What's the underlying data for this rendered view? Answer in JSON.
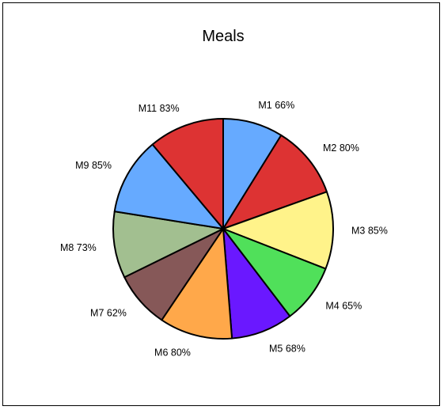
{
  "chart_data": {
    "type": "pie",
    "title": "Meals",
    "slices": [
      {
        "label": "M1 66%",
        "value": 66,
        "color": "#66aaff"
      },
      {
        "label": "M2 80%",
        "value": 80,
        "color": "#dd3333"
      },
      {
        "label": "M3 85%",
        "value": 85,
        "color": "#fff38a"
      },
      {
        "label": "M4 65%",
        "value": 65,
        "color": "#50e05a"
      },
      {
        "label": "M5 68%",
        "value": 68,
        "color": "#6a18ff"
      },
      {
        "label": "M6 80%",
        "value": 80,
        "color": "#ffa84a"
      },
      {
        "label": "M7 62%",
        "value": 62,
        "color": "#865858"
      },
      {
        "label": "M8 73%",
        "value": 73,
        "color": "#a2bf90"
      },
      {
        "label": "M9 85%",
        "value": 85,
        "color": "#66aaff"
      },
      {
        "label": "M11 83%",
        "value": 83,
        "color": "#dd3333"
      }
    ]
  }
}
